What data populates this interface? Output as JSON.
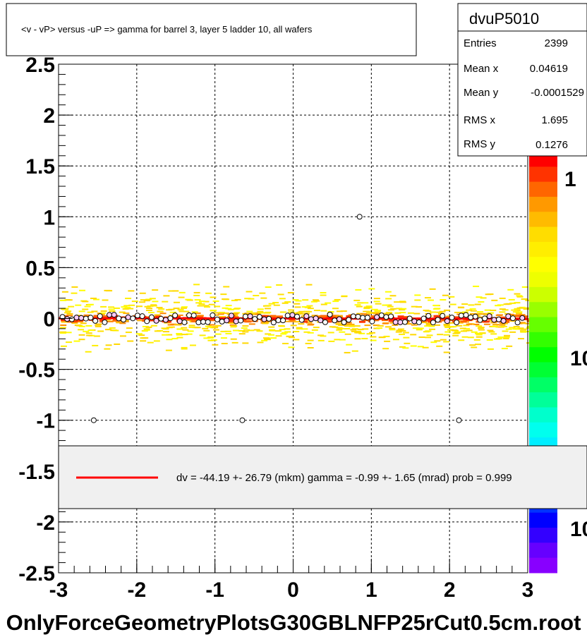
{
  "title": "<v - vP>       versus  -uP =>  gamma for barrel 3, layer 5 ladder 10, all wafers",
  "footer": "OnlyForceGeometryPlotsG30GBLNFP25rCut0.5cm.root",
  "stats": {
    "name": "dvuP5010",
    "rows": [
      {
        "label": "Entries",
        "value": "2399"
      },
      {
        "label": "Mean x",
        "value": "0.04619"
      },
      {
        "label": "Mean y",
        "value": "-0.0001529"
      },
      {
        "label": "RMS x",
        "value": "1.695"
      },
      {
        "label": "RMS y",
        "value": "0.1276"
      }
    ]
  },
  "legend": {
    "text": "dv =  -44.19 +- 26.79 (mkm) gamma =   -0.99 +-  1.65 (mrad) prob = 0.999",
    "line_color": "#ff0000"
  },
  "palette": {
    "labels": [
      "1",
      "10",
      "10"
    ]
  },
  "chart_data": {
    "type": "heatmap",
    "xlim": [
      -3,
      3
    ],
    "ylim": [
      -2.5,
      2.5
    ],
    "x_ticks": [
      "-3",
      "-2",
      "-1",
      "0",
      "1",
      "2",
      "3"
    ],
    "y_ticks": [
      "-2.5",
      "-2",
      "-1.5",
      "-1",
      "-0.5",
      "0",
      "0.5",
      "1",
      "1.5",
      "2",
      "2.5"
    ],
    "grid": true,
    "fit_line": {
      "x": [
        -3,
        3
      ],
      "y": [
        0.003,
        -0.003
      ],
      "color": "#ff0000"
    },
    "outliers": [
      {
        "x": -2.55,
        "y": -1.0
      },
      {
        "x": -0.65,
        "y": -1.0
      },
      {
        "x": 0.85,
        "y": 1.0
      },
      {
        "x": 2.12,
        "y": -1.0
      }
    ],
    "profile_points_x_range": [
      -2.95,
      2.95
    ],
    "profile_points_y_mean": 0.0,
    "band": {
      "y_min": -0.45,
      "y_max": 0.45
    }
  }
}
